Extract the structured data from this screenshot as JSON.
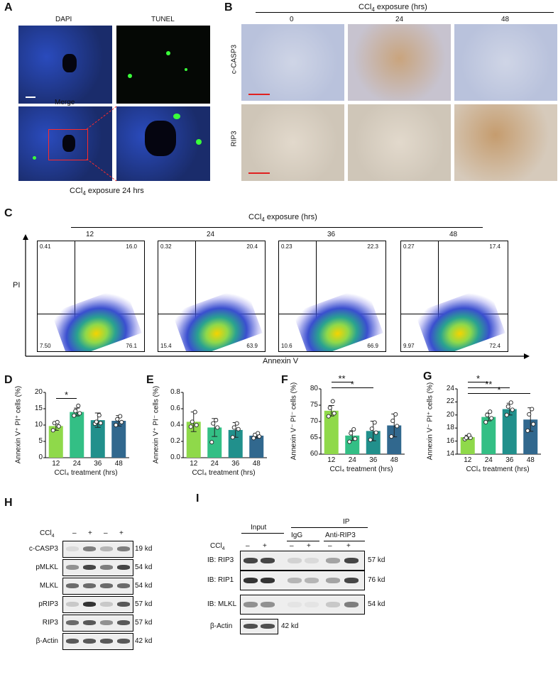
{
  "panels": [
    "A",
    "B",
    "C",
    "D",
    "E",
    "F",
    "G",
    "H",
    "I"
  ],
  "A": {
    "labels": [
      "DAPI",
      "TUNEL",
      "Merge"
    ],
    "caption_pre": "CCl",
    "caption_sub": "4",
    "caption_post": " exposure 24 hrs"
  },
  "B": {
    "title_pre": "CCl",
    "title_sub": "4",
    "title_post": " exposure (hrs)",
    "times": [
      "0",
      "24",
      "48"
    ],
    "rows": [
      "c-CASP3",
      "RIP3"
    ]
  },
  "C": {
    "title_pre": "CCl",
    "title_sub": "4",
    "title_post": " exposure (hrs)",
    "ylabel": "PI",
    "xlabel": "Annexin V",
    "plots": [
      {
        "time": "12",
        "ul": "0.41",
        "ur": "16.0",
        "ll": "7.50",
        "lr": "76.1"
      },
      {
        "time": "24",
        "ul": "0.32",
        "ur": "20.4",
        "ll": "15.4",
        "lr": "63.9"
      },
      {
        "time": "36",
        "ul": "0.23",
        "ur": "22.3",
        "ll": "10.6",
        "lr": "66.9"
      },
      {
        "time": "48",
        "ul": "0.27",
        "ur": "17.4",
        "ll": "9.97",
        "lr": "72.4"
      }
    ]
  },
  "chart_data": [
    {
      "type": "bar",
      "panel": "D",
      "categories": [
        "12",
        "24",
        "36",
        "48"
      ],
      "values": [
        9.7,
        14.0,
        11.5,
        11.3
      ],
      "errors": [
        1.3,
        1.2,
        2.2,
        1.6
      ],
      "points": [
        [
          8.4,
          9.6,
          10.6,
          10.9
        ],
        [
          12.9,
          13.6,
          14.3,
          15.9
        ],
        [
          10.4,
          10.6,
          11.0,
          13.0
        ],
        [
          10.0,
          10.9,
          11.8,
          12.7
        ]
      ],
      "ylabel": "Annexin V⁺ PI⁺ cells (%)",
      "xlabel": "CCl₄ treatment (hrs)",
      "ylim": [
        0,
        20
      ],
      "yticks": [
        "0",
        "5",
        "10",
        "15",
        "20"
      ],
      "sig": [
        {
          "from": 0,
          "to": 1,
          "label": "*"
        }
      ]
    },
    {
      "type": "bar",
      "panel": "E",
      "categories": [
        "12",
        "24",
        "36",
        "48"
      ],
      "values": [
        0.44,
        0.37,
        0.34,
        0.27
      ],
      "errors": [
        0.12,
        0.11,
        0.09,
        0.03
      ],
      "points": [
        [
          0.38,
          0.4,
          0.44,
          0.56
        ],
        [
          0.19,
          0.37,
          0.42,
          0.46
        ],
        [
          0.25,
          0.35,
          0.37,
          0.42
        ],
        [
          0.24,
          0.26,
          0.28,
          0.3
        ]
      ],
      "ylabel": "Annexin V⁺ PI⁻ cells (%)",
      "xlabel": "CCl₄ treatment (hrs)",
      "ylim": [
        0,
        0.8
      ],
      "yticks": [
        "0.0",
        "0.2",
        "0.4",
        "0.6",
        "0.8"
      ],
      "sig": []
    },
    {
      "type": "bar",
      "panel": "F",
      "categories": [
        "12",
        "24",
        "36",
        "48"
      ],
      "values": [
        73.3,
        65.7,
        67.1,
        68.8
      ],
      "errors": [
        1.6,
        1.5,
        3.0,
        3.5
      ],
      "points": [
        [
          71.6,
          72.5,
          74.2,
          76.2
        ],
        [
          63.8,
          64.7,
          66.4,
          67.6
        ],
        [
          64.4,
          66.6,
          67.8,
          69.7
        ],
        [
          65.4,
          68.6,
          70.2,
          72.2
        ]
      ],
      "ylabel": "Annexin V⁻ PI⁻ cells (%)",
      "xlabel": "CCl₄ treatment (hrs)",
      "ylim": [
        60,
        80
      ],
      "yticks": [
        "60",
        "65",
        "70",
        "75",
        "80"
      ],
      "sig": [
        {
          "from": 0,
          "to": 1,
          "label": "**"
        },
        {
          "from": 0,
          "to": 2,
          "label": "*"
        }
      ]
    },
    {
      "type": "bar",
      "panel": "G",
      "categories": [
        "12",
        "24",
        "36",
        "48"
      ],
      "values": [
        16.6,
        19.7,
        20.9,
        19.3
      ],
      "errors": [
        0.3,
        0.6,
        0.9,
        1.8
      ],
      "points": [
        [
          16.3,
          16.5,
          16.5,
          16.9
        ],
        [
          18.9,
          19.5,
          20.0,
          20.5
        ],
        [
          20.0,
          20.8,
          21.3,
          21.9
        ],
        [
          17.6,
          18.6,
          20.1,
          20.9
        ]
      ],
      "ylabel": "Annexin V⁻ PI⁺ cells (%)",
      "xlabel": "CCl₄ treatment (hrs)",
      "ylim": [
        14,
        24
      ],
      "yticks": [
        "14",
        "16",
        "18",
        "20",
        "22",
        "24"
      ],
      "sig": [
        {
          "from": 0,
          "to": 1,
          "label": "*"
        },
        {
          "from": 0,
          "to": 2,
          "label": "**"
        },
        {
          "from": 0,
          "to": 3,
          "label": "*"
        }
      ]
    }
  ],
  "colors": [
    "#8fd94a",
    "#33bf85",
    "#21908c",
    "#31688e"
  ],
  "H": {
    "ccl4_pre": "CCl",
    "ccl4_sub": "4",
    "signs": [
      "–",
      "+",
      "–",
      "+"
    ],
    "rows": [
      {
        "name": "c-CASP3",
        "kd": "19 kd"
      },
      {
        "name": "pMLKL",
        "kd": "54 kd"
      },
      {
        "name": "MLKL",
        "kd": "54 kd"
      },
      {
        "name": "pRIP3",
        "kd": "57 kd"
      },
      {
        "name": "RIP3",
        "kd": "57 kd"
      },
      {
        "name": "β-Actin",
        "kd": "42 kd"
      }
    ]
  },
  "I": {
    "ip": "IP",
    "groups": [
      "Input",
      "IgG",
      "Anti-RIP3"
    ],
    "ccl4_pre": "CCl",
    "ccl4_sub": "4",
    "signs": [
      "–",
      "+",
      "–",
      "+",
      "–",
      "+"
    ],
    "rows": [
      {
        "name": "IB: RIP3",
        "kd": "57 kd"
      },
      {
        "name": "IB: RIP1",
        "kd": "76 kd"
      },
      {
        "name": "IB: MLKL",
        "kd": "54 kd"
      }
    ],
    "actin": {
      "name": "β-Actin",
      "kd": "42 kd"
    }
  }
}
